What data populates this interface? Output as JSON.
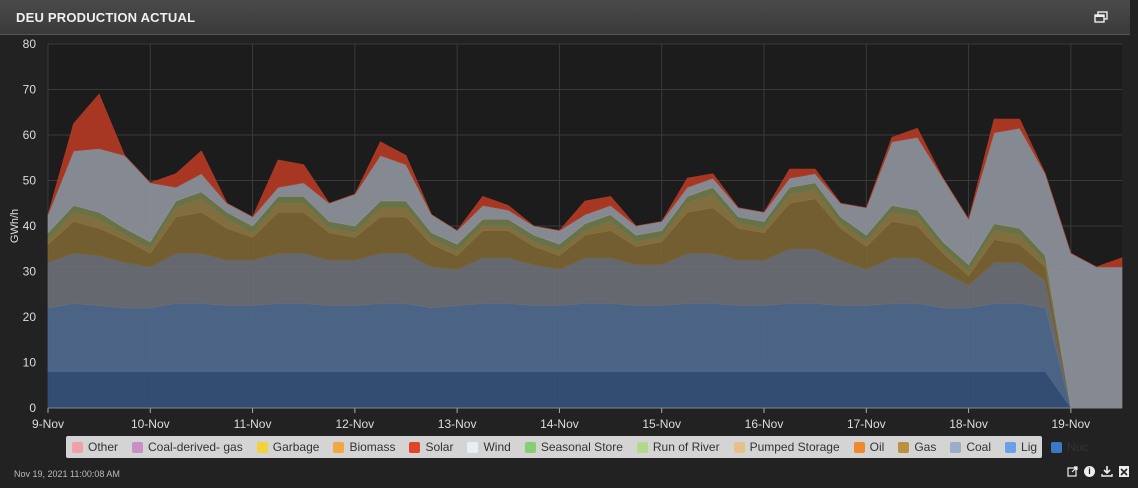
{
  "panel": {
    "title": "DEU PRODUCTION ACTUAL",
    "timestamp": "Nov 19, 2021 11:00:08 AM",
    "icons": [
      "restore-window-icon",
      "external-link-icon",
      "info-icon",
      "download-icon",
      "excel-export-icon"
    ]
  },
  "colors": {
    "Nuc": "#35507a",
    "Lig": "#4f6a8f",
    "Coal": "#6b6f76",
    "Gas": "#7a6433",
    "Pumped Storage": "#8a7440",
    "Run of River": "#6f7a4a",
    "Wind": "#8e949c",
    "Solar": "#b33a24",
    "Oil": "#c97020",
    "Biomass": "#c98a3a",
    "Garbage": "#d1c04a",
    "Seasonal Store": "#6f9a5a",
    "Coal-derived- gas": "#b27ab0",
    "Other": "#d98a8a"
  },
  "legend": [
    {
      "label": "Other",
      "color": "#f2a0a8"
    },
    {
      "label": "Coal-derived- gas",
      "color": "#c990c4"
    },
    {
      "label": "Garbage",
      "color": "#f1d33c"
    },
    {
      "label": "Biomass",
      "color": "#f1a842"
    },
    {
      "label": "Solar",
      "color": "#e0452c"
    },
    {
      "label": "Wind",
      "color": "#e6eef6"
    },
    {
      "label": "Seasonal Store",
      "color": "#84cf72"
    },
    {
      "label": "Run of River",
      "color": "#b4d88a"
    },
    {
      "label": "Pumped Storage",
      "color": "#e7c087"
    },
    {
      "label": "Oil",
      "color": "#ef8a2c"
    },
    {
      "label": "Gas",
      "color": "#b8923e"
    },
    {
      "label": "Coal",
      "color": "#9aaec8"
    },
    {
      "label": "Lig",
      "color": "#6aa0e6"
    },
    {
      "label": "Nuc",
      "color": "#3a78c8"
    }
  ],
  "chart_data": {
    "type": "area",
    "stacked": true,
    "title": "DEU PRODUCTION ACTUAL",
    "xlabel": "",
    "ylabel": "GWh/h",
    "ylim": [
      0,
      80
    ],
    "yticks": [
      0,
      10,
      20,
      30,
      40,
      50,
      60,
      70,
      80
    ],
    "grid": true,
    "legend_position": "bottom",
    "x_ticks": [
      "9-Nov",
      "10-Nov",
      "11-Nov",
      "12-Nov",
      "13-Nov",
      "14-Nov",
      "15-Nov",
      "16-Nov",
      "17-Nov",
      "18-Nov",
      "19-Nov"
    ],
    "x_units": "days since 9-Nov",
    "x": [
      0,
      0.25,
      0.5,
      0.75,
      1,
      1.25,
      1.5,
      1.75,
      2,
      2.25,
      2.5,
      2.75,
      3,
      3.25,
      3.5,
      3.75,
      4,
      4.25,
      4.5,
      4.75,
      5,
      5.25,
      5.5,
      5.75,
      6,
      6.25,
      6.5,
      6.75,
      7,
      7.25,
      7.5,
      7.75,
      8,
      8.25,
      8.5,
      8.75,
      9,
      9.25,
      9.5,
      9.75,
      10,
      10.25,
      10.5
    ],
    "series": [
      {
        "name": "Nuc",
        "values": [
          8,
          8,
          8,
          8,
          8,
          8,
          8,
          8,
          8,
          8,
          8,
          8,
          8,
          8,
          8,
          8,
          8,
          8,
          8,
          8,
          8,
          8,
          8,
          8,
          8,
          8,
          8,
          8,
          8,
          8,
          8,
          8,
          8,
          8,
          8,
          8,
          8,
          8,
          8,
          8,
          0,
          0,
          0
        ]
      },
      {
        "name": "Lig",
        "values": [
          14,
          15,
          14.5,
          14,
          14,
          15,
          15,
          14.5,
          14.5,
          15,
          15,
          14.5,
          14.5,
          15,
          15,
          14,
          14.5,
          15,
          15,
          14.5,
          14.5,
          15,
          15,
          14.5,
          14.5,
          15,
          15,
          14.5,
          14.5,
          15,
          15,
          14.5,
          14.5,
          15,
          15,
          14,
          14,
          15,
          15,
          14,
          0,
          0,
          0
        ]
      },
      {
        "name": "Coal",
        "values": [
          10,
          11,
          11,
          10,
          9,
          11,
          11,
          10,
          10,
          11,
          11,
          10,
          10,
          11,
          11,
          9,
          8,
          10,
          10,
          9,
          8,
          10,
          10,
          9,
          9,
          11,
          11,
          10,
          10,
          12,
          12,
          10,
          8,
          10,
          10,
          8,
          5,
          9,
          9,
          6,
          0,
          0,
          0
        ]
      },
      {
        "name": "Gas",
        "values": [
          4,
          7,
          6,
          5,
          3,
          8,
          9,
          7,
          5,
          9,
          9,
          6,
          5,
          8,
          8,
          5,
          3,
          6,
          6,
          4,
          3,
          5,
          6,
          4,
          5,
          9,
          10,
          7,
          6,
          10,
          11,
          7,
          5,
          8,
          7,
          4,
          2,
          5,
          4,
          3,
          0,
          0,
          0
        ]
      },
      {
        "name": "Pumped Storage",
        "values": [
          1,
          2,
          2,
          1,
          1,
          2,
          3,
          2,
          1,
          2,
          2,
          1,
          1,
          2,
          2,
          1,
          1,
          1,
          1,
          1,
          1,
          1,
          2,
          1,
          1,
          2,
          3,
          1,
          1,
          2,
          2,
          1,
          1,
          2,
          2,
          1,
          1,
          2,
          2,
          1,
          0,
          0,
          0
        ]
      },
      {
        "name": "Run of River",
        "values": [
          1.5,
          1.5,
          1.5,
          1.5,
          1.5,
          1.5,
          1.5,
          1.5,
          1.5,
          1.5,
          1.5,
          1.5,
          1.5,
          1.5,
          1.5,
          1.5,
          1.5,
          1.5,
          1.5,
          1.5,
          1.5,
          1.5,
          1.5,
          1.5,
          1.5,
          1.5,
          1.5,
          1.5,
          1.5,
          1.5,
          1.5,
          1.5,
          1.5,
          1.5,
          1.5,
          1.5,
          1.5,
          1.5,
          1.5,
          1.5,
          0,
          0,
          0
        ]
      },
      {
        "name": "Wind",
        "values": [
          4,
          12,
          14,
          16,
          13,
          3,
          4,
          2,
          2,
          2,
          3,
          4,
          7,
          10,
          8,
          4,
          3,
          3,
          2,
          2,
          3,
          2,
          2,
          2,
          2,
          2,
          2,
          2,
          2,
          2,
          2,
          3,
          6,
          14,
          16,
          14,
          10,
          20,
          22,
          18,
          34,
          31,
          31
        ]
      },
      {
        "name": "Solar",
        "values": [
          0,
          6,
          12,
          0,
          0,
          3,
          5,
          0,
          0,
          6,
          4,
          0,
          0,
          3,
          2,
          0,
          0,
          2,
          1,
          0,
          0,
          3,
          2,
          0,
          0,
          2,
          1,
          0,
          0,
          2,
          1,
          0,
          0,
          1,
          2,
          0,
          0,
          3,
          2,
          0,
          0,
          0,
          2
        ]
      }
    ],
    "annotations": []
  }
}
